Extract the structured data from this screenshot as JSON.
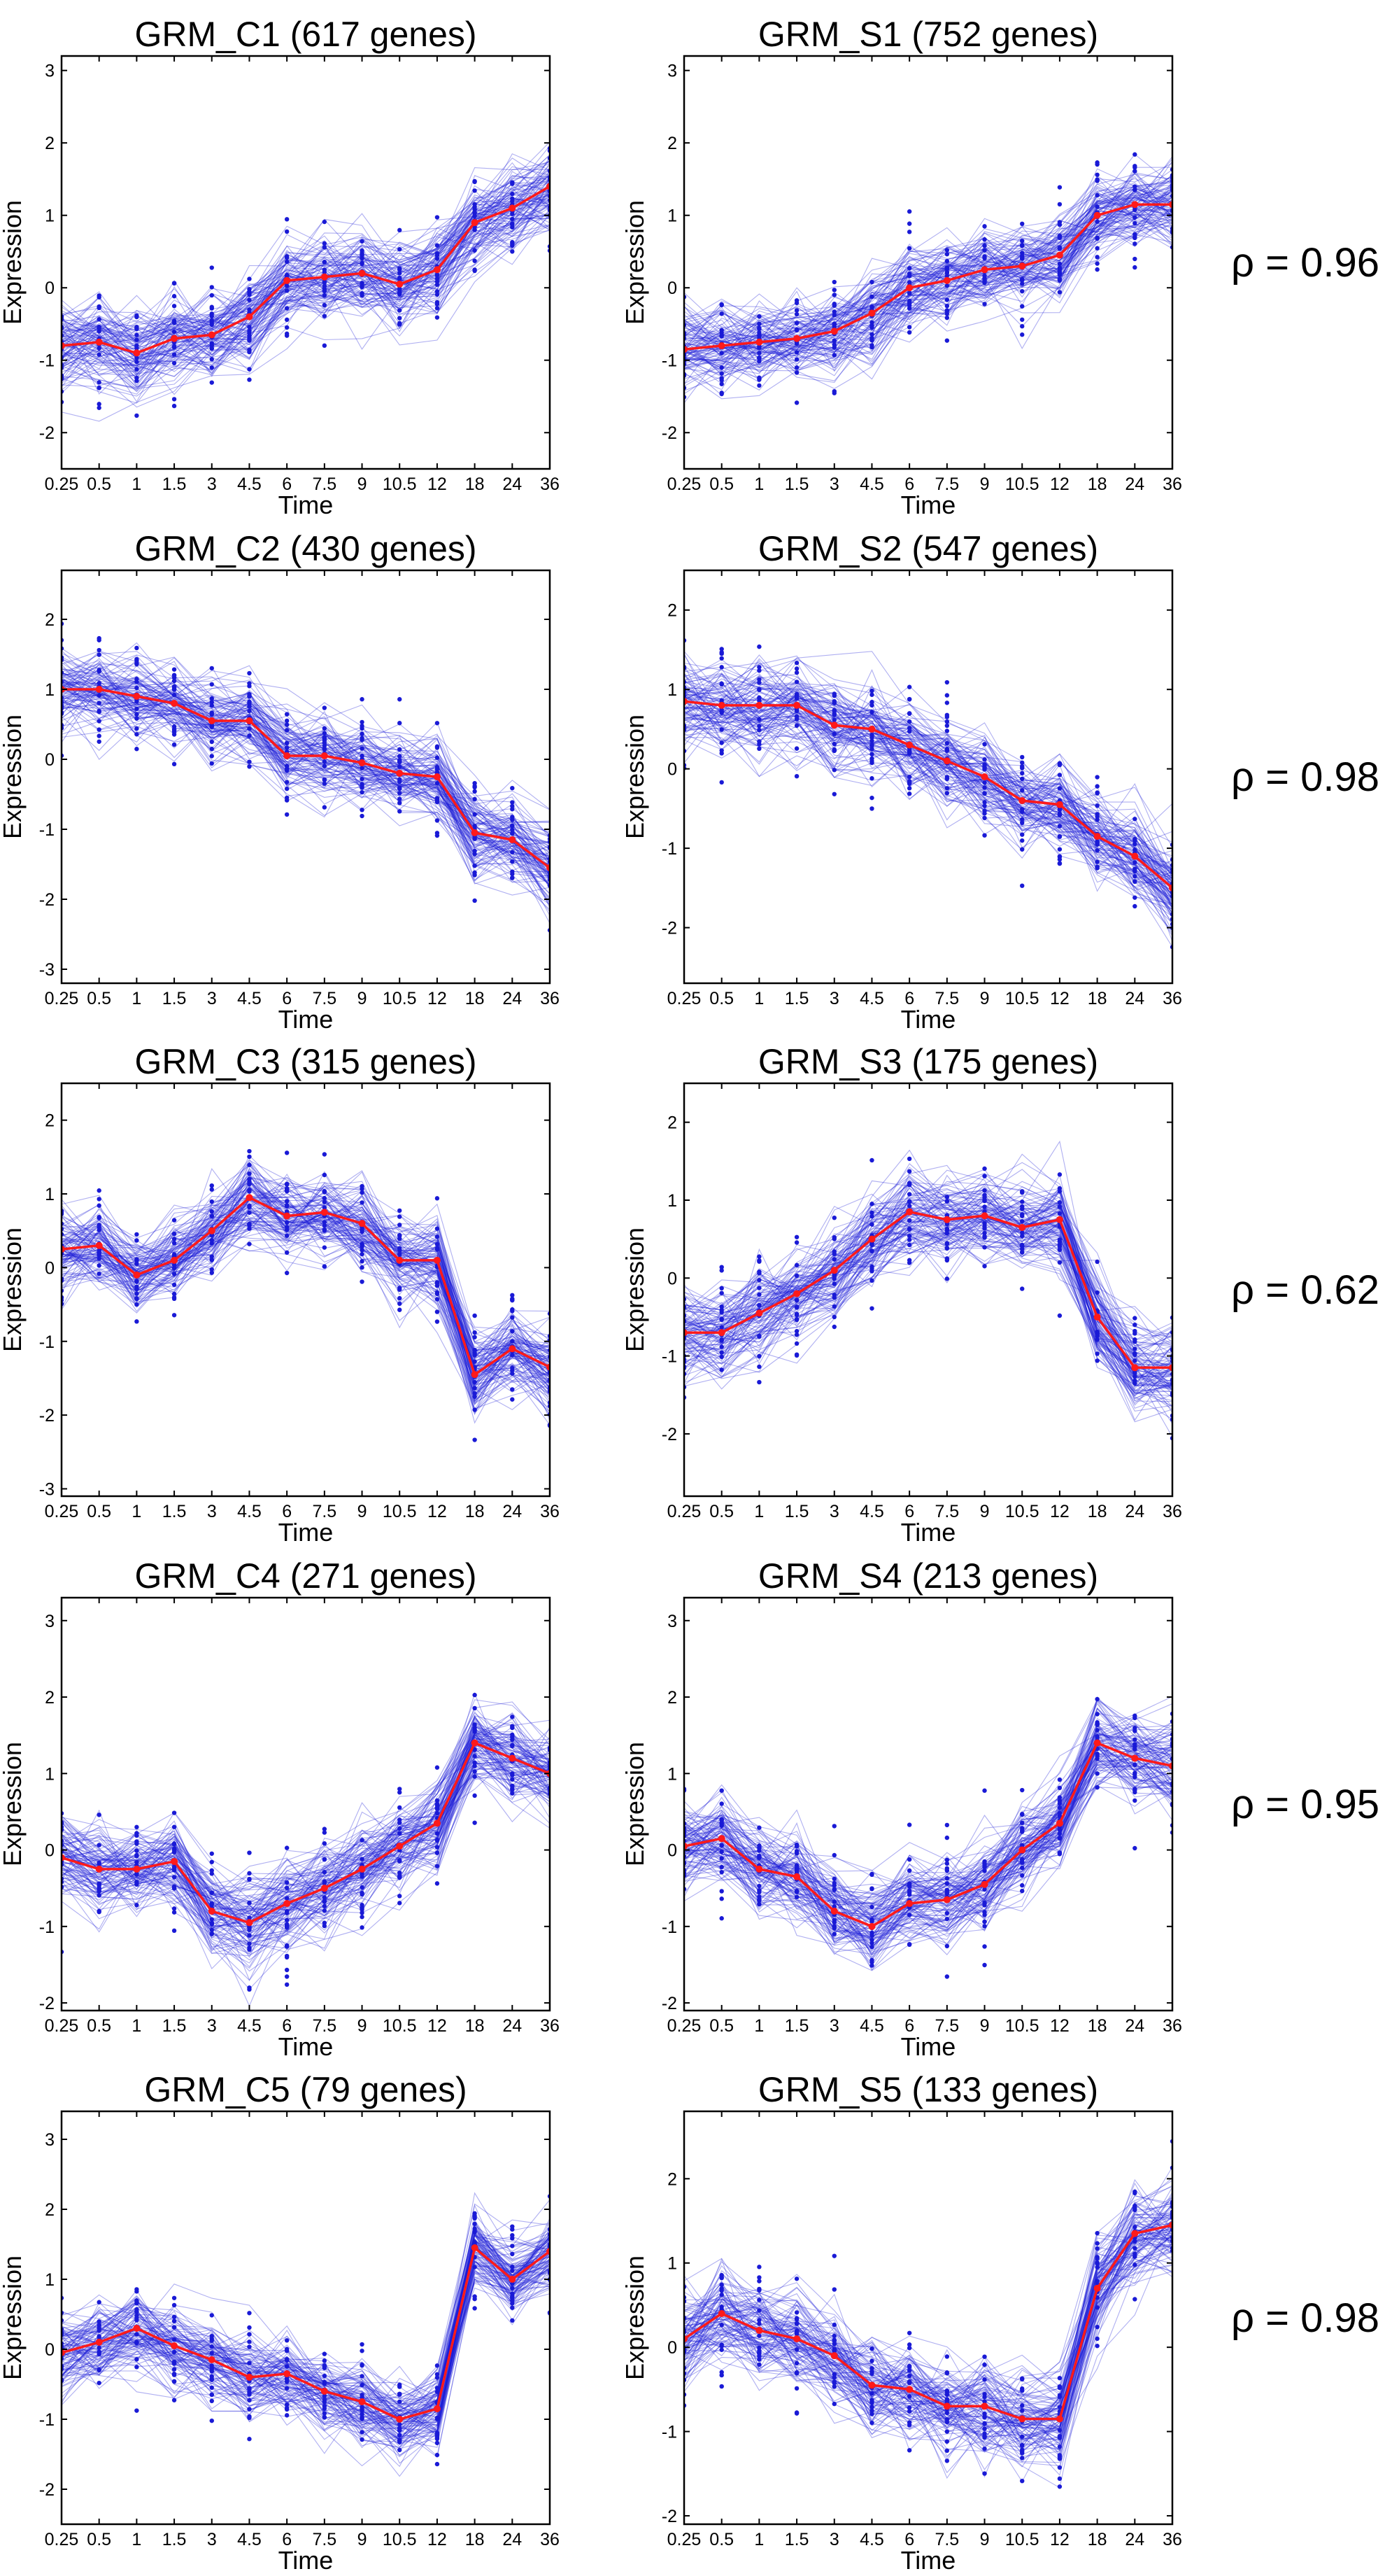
{
  "x_labels": [
    "0.25",
    "0.5",
    "1",
    "1.5",
    "3",
    "4.5",
    "6",
    "7.5",
    "9",
    "10.5",
    "12",
    "18",
    "24",
    "36"
  ],
  "chart_data": [
    {
      "type": "line",
      "id": "c1",
      "title": "GRM_C1 (617 genes)",
      "xlabel": "Time",
      "ylabel": "Expression",
      "x": [
        "0.25",
        "0.5",
        "1",
        "1.5",
        "3",
        "4.5",
        "6",
        "7.5",
        "9",
        "10.5",
        "12",
        "18",
        "24",
        "36"
      ],
      "ylim": [
        -2.5,
        3.2
      ],
      "yticks": [
        -2,
        -1,
        0,
        1,
        2,
        3
      ],
      "series": [
        {
          "name": "mean",
          "values": [
            -0.8,
            -0.75,
            -0.9,
            -0.7,
            -0.65,
            -0.4,
            0.1,
            0.15,
            0.2,
            0.05,
            0.25,
            0.9,
            1.1,
            1.4
          ]
        }
      ]
    },
    {
      "type": "line",
      "id": "s1",
      "title": "GRM_S1 (752 genes)",
      "xlabel": "Time",
      "ylabel": "Expression",
      "x": [
        "0.25",
        "0.5",
        "1",
        "1.5",
        "3",
        "4.5",
        "6",
        "7.5",
        "9",
        "10.5",
        "12",
        "18",
        "24",
        "36"
      ],
      "ylim": [
        -2.5,
        3.2
      ],
      "yticks": [
        -2,
        -1,
        0,
        1,
        2,
        3
      ],
      "series": [
        {
          "name": "mean",
          "values": [
            -0.85,
            -0.8,
            -0.75,
            -0.7,
            -0.6,
            -0.35,
            0,
            0.1,
            0.25,
            0.3,
            0.45,
            1.0,
            1.15,
            1.15
          ]
        }
      ]
    },
    {
      "type": "line",
      "id": "c2",
      "title": "GRM_C2 (430 genes)",
      "xlabel": "Time",
      "ylabel": "Expression",
      "x": [
        "0.25",
        "0.5",
        "1",
        "1.5",
        "3",
        "4.5",
        "6",
        "7.5",
        "9",
        "10.5",
        "12",
        "18",
        "24",
        "36"
      ],
      "ylim": [
        -3.2,
        2.7
      ],
      "yticks": [
        -3,
        -2,
        -1,
        0,
        1,
        2
      ],
      "series": [
        {
          "name": "mean",
          "values": [
            1.0,
            1.0,
            0.9,
            0.8,
            0.55,
            0.55,
            0.05,
            0.05,
            -0.05,
            -0.2,
            -0.25,
            -1.05,
            -1.15,
            -1.55
          ]
        }
      ]
    },
    {
      "type": "line",
      "id": "s2",
      "title": "GRM_S2 (547 genes)",
      "xlabel": "Time",
      "ylabel": "Expression",
      "x": [
        "0.25",
        "0.5",
        "1",
        "1.5",
        "3",
        "4.5",
        "6",
        "7.5",
        "9",
        "10.5",
        "12",
        "18",
        "24",
        "36"
      ],
      "ylim": [
        -2.7,
        2.5
      ],
      "yticks": [
        -2,
        -1,
        0,
        1,
        2
      ],
      "series": [
        {
          "name": "mean",
          "values": [
            0.85,
            0.8,
            0.8,
            0.8,
            0.55,
            0.5,
            0.3,
            0.1,
            -0.1,
            -0.4,
            -0.45,
            -0.85,
            -1.1,
            -1.5
          ]
        }
      ]
    },
    {
      "type": "line",
      "id": "c3",
      "title": "GRM_C3 (315 genes)",
      "xlabel": "Time",
      "ylabel": "Expression",
      "x": [
        "0.25",
        "0.5",
        "1",
        "1.5",
        "3",
        "4.5",
        "6",
        "7.5",
        "9",
        "10.5",
        "12",
        "18",
        "24",
        "36"
      ],
      "ylim": [
        -3.1,
        2.5
      ],
      "yticks": [
        -3,
        -2,
        -1,
        0,
        1,
        2
      ],
      "series": [
        {
          "name": "mean",
          "values": [
            0.25,
            0.3,
            -0.1,
            0.1,
            0.5,
            0.95,
            0.7,
            0.75,
            0.6,
            0.1,
            0.1,
            -1.45,
            -1.1,
            -1.35
          ]
        }
      ]
    },
    {
      "type": "line",
      "id": "s3",
      "title": "GRM_S3 (175 genes)",
      "xlabel": "Time",
      "ylabel": "Expression",
      "x": [
        "0.25",
        "0.5",
        "1",
        "1.5",
        "3",
        "4.5",
        "6",
        "7.5",
        "9",
        "10.5",
        "12",
        "18",
        "24",
        "36"
      ],
      "ylim": [
        -2.8,
        2.5
      ],
      "yticks": [
        -2,
        -1,
        0,
        1,
        2
      ],
      "series": [
        {
          "name": "mean",
          "values": [
            -0.7,
            -0.7,
            -0.45,
            -0.2,
            0.1,
            0.5,
            0.85,
            0.75,
            0.8,
            0.65,
            0.75,
            -0.5,
            -1.15,
            -1.15
          ]
        }
      ]
    },
    {
      "type": "line",
      "id": "c4",
      "title": "GRM_C4 (271 genes)",
      "xlabel": "Time",
      "ylabel": "Expression",
      "x": [
        "0.25",
        "0.5",
        "1",
        "1.5",
        "3",
        "4.5",
        "6",
        "7.5",
        "9",
        "10.5",
        "12",
        "18",
        "24",
        "36"
      ],
      "ylim": [
        -2.1,
        3.3
      ],
      "yticks": [
        -2,
        -1,
        0,
        1,
        2,
        3
      ],
      "series": [
        {
          "name": "mean",
          "values": [
            -0.1,
            -0.25,
            -0.25,
            -0.15,
            -0.8,
            -0.95,
            -0.7,
            -0.5,
            -0.25,
            0.05,
            0.35,
            1.4,
            1.2,
            1.0
          ]
        }
      ]
    },
    {
      "type": "line",
      "id": "s4",
      "title": "GRM_S4 (213 genes)",
      "xlabel": "Time",
      "ylabel": "Expression",
      "x": [
        "0.25",
        "0.5",
        "1",
        "1.5",
        "3",
        "4.5",
        "6",
        "7.5",
        "9",
        "10.5",
        "12",
        "18",
        "24",
        "36"
      ],
      "ylim": [
        -2.1,
        3.3
      ],
      "yticks": [
        -2,
        -1,
        0,
        1,
        2,
        3
      ],
      "series": [
        {
          "name": "mean",
          "values": [
            0.05,
            0.15,
            -0.25,
            -0.35,
            -0.8,
            -1.0,
            -0.7,
            -0.65,
            -0.45,
            0.0,
            0.35,
            1.4,
            1.2,
            1.1
          ]
        }
      ]
    },
    {
      "type": "line",
      "id": "c5",
      "title": "GRM_C5 (79 genes)",
      "xlabel": "Time",
      "ylabel": "Expression",
      "x": [
        "0.25",
        "0.5",
        "1",
        "1.5",
        "3",
        "4.5",
        "6",
        "7.5",
        "9",
        "10.5",
        "12",
        "18",
        "24",
        "36"
      ],
      "ylim": [
        -2.5,
        3.4
      ],
      "yticks": [
        -2,
        -1,
        0,
        1,
        2,
        3
      ],
      "series": [
        {
          "name": "mean",
          "values": [
            -0.05,
            0.1,
            0.3,
            0.05,
            -0.15,
            -0.4,
            -0.35,
            -0.6,
            -0.75,
            -1.0,
            -0.85,
            1.45,
            1.0,
            1.4
          ]
        }
      ]
    },
    {
      "type": "line",
      "id": "s5",
      "title": "GRM_S5 (133 genes)",
      "xlabel": "Time",
      "ylabel": "Expression",
      "x": [
        "0.25",
        "0.5",
        "1",
        "1.5",
        "3",
        "4.5",
        "6",
        "7.5",
        "9",
        "10.5",
        "12",
        "18",
        "24",
        "36"
      ],
      "ylim": [
        -2.1,
        2.8
      ],
      "yticks": [
        -2,
        -1,
        0,
        1,
        2
      ],
      "series": [
        {
          "name": "mean",
          "values": [
            0.1,
            0.4,
            0.2,
            0.1,
            -0.1,
            -0.45,
            -0.5,
            -0.7,
            -0.7,
            -0.85,
            -0.85,
            0.7,
            1.35,
            1.45
          ]
        }
      ]
    }
  ],
  "correlations": [
    "ρ = 0.96",
    "ρ = 0.98",
    "ρ = 0.62",
    "ρ = 0.95",
    "ρ = 0.98"
  ],
  "colors": {
    "genes": "#1a1ad6",
    "mean": "#ff1a1a",
    "axis": "#000000"
  }
}
